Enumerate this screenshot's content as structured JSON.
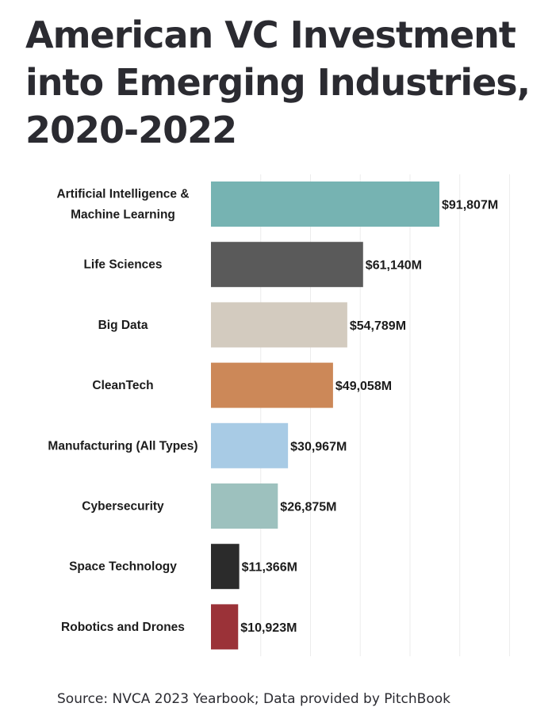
{
  "chart_data": {
    "type": "bar",
    "orientation": "horizontal",
    "title": "American VC Investment into Emerging Industries, 2020-2022",
    "categories": [
      [
        "Artificial Intelligence &",
        "Machine Learning"
      ],
      [
        "Life Sciences"
      ],
      [
        "Big Data"
      ],
      [
        "CleanTech"
      ],
      [
        "Manufacturing (All Types)"
      ],
      [
        "Cybersecurity"
      ],
      [
        "Space Technology"
      ],
      [
        "Robotics and Drones"
      ]
    ],
    "values": [
      91807,
      61140,
      54789,
      49058,
      30967,
      26875,
      11366,
      10923
    ],
    "value_labels": [
      "$91,807M",
      "$61,140M",
      "$54,789M",
      "$49,058M",
      "$30,967M",
      "$26,875M",
      "$11,366M",
      "$10,923M"
    ],
    "colors": [
      "#76b3b2",
      "#5a5a5a",
      "#d3cbbf",
      "#cc8858",
      "#a8cbe5",
      "#9dc1be",
      "#2b2b2b",
      "#9b3238"
    ],
    "xlabel": "",
    "ylabel": "",
    "xlim": [
      0,
      122000
    ],
    "grid": true
  },
  "title_lines": [
    "American VC Investment",
    "into Emerging Industries,",
    "2020-2022"
  ],
  "source": "Source: NVCA 2023 Yearbook; Data provided by PitchBook"
}
